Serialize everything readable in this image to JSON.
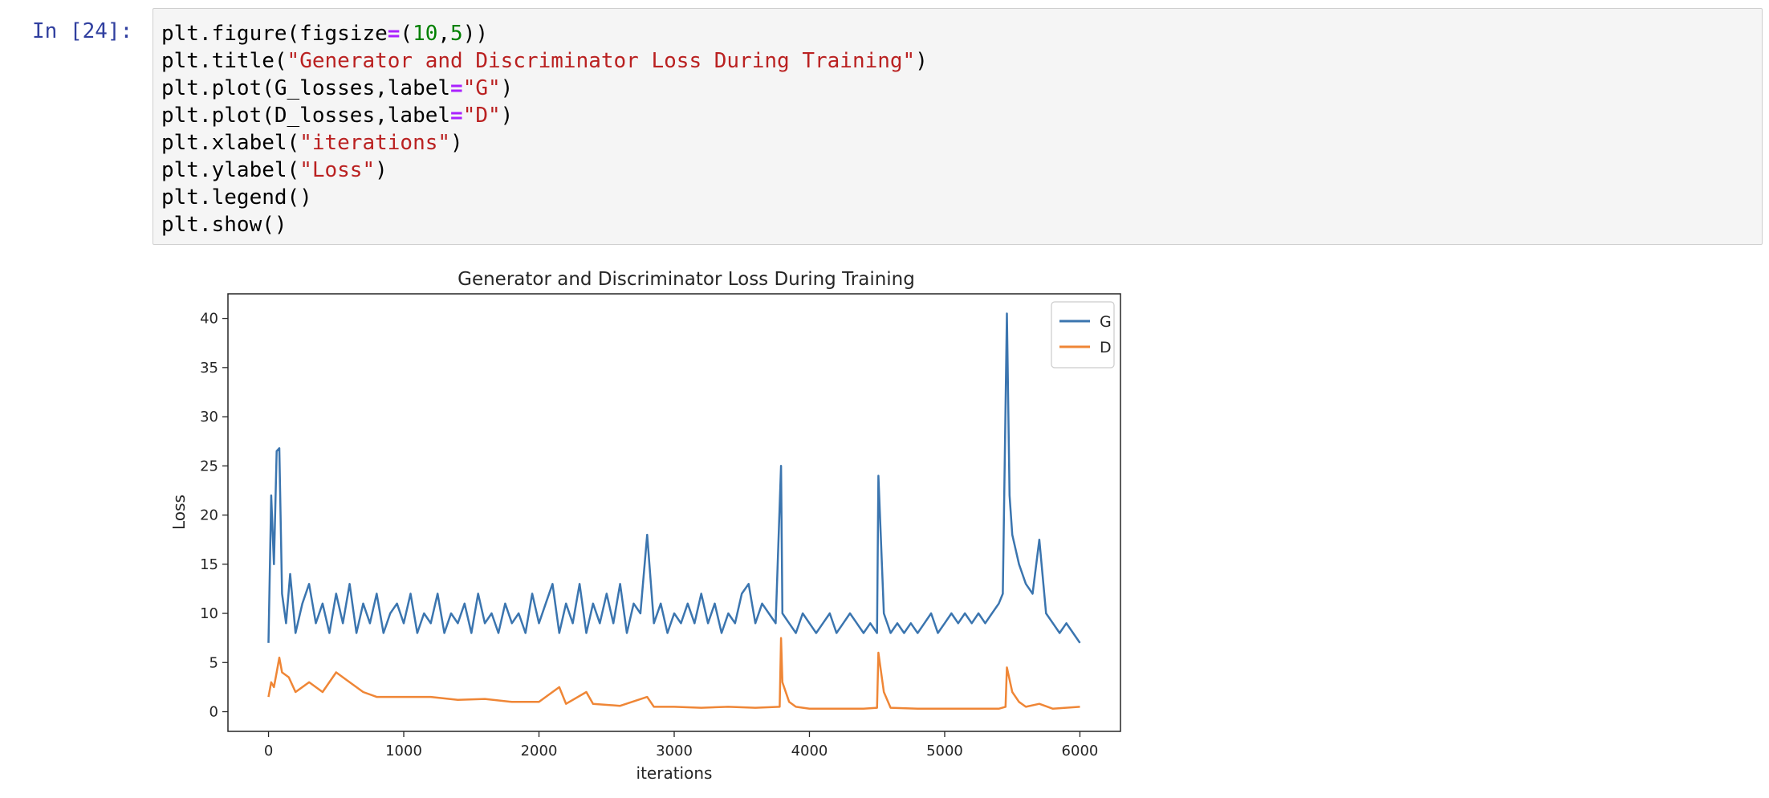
{
  "cell": {
    "prompt": "In [24]:",
    "code_lines": [
      [
        {
          "t": "plt.figure(figsize"
        },
        {
          "t": "=",
          "c": "op"
        },
        {
          "t": "("
        },
        {
          "t": "10",
          "c": "num"
        },
        {
          "t": ","
        },
        {
          "t": "5",
          "c": "num"
        },
        {
          "t": "))"
        }
      ],
      [
        {
          "t": "plt.title("
        },
        {
          "t": "\"Generator and Discriminator Loss During Training\"",
          "c": "str"
        },
        {
          "t": ")"
        }
      ],
      [
        {
          "t": "plt.plot(G_losses,label"
        },
        {
          "t": "=",
          "c": "op"
        },
        {
          "t": "\"G\"",
          "c": "str"
        },
        {
          "t": ")"
        }
      ],
      [
        {
          "t": "plt.plot(D_losses,label"
        },
        {
          "t": "=",
          "c": "op"
        },
        {
          "t": "\"D\"",
          "c": "str"
        },
        {
          "t": ")"
        }
      ],
      [
        {
          "t": "plt.xlabel("
        },
        {
          "t": "\"iterations\"",
          "c": "str"
        },
        {
          "t": ")"
        }
      ],
      [
        {
          "t": "plt.ylabel("
        },
        {
          "t": "\"Loss\"",
          "c": "str"
        },
        {
          "t": ")"
        }
      ],
      [
        {
          "t": "plt.legend()"
        }
      ],
      [
        {
          "t": "plt.show()"
        }
      ]
    ]
  },
  "colors": {
    "G": "#3b75af",
    "D": "#ef8636"
  },
  "chart_data": {
    "type": "line",
    "title": "Generator and Discriminator Loss During Training",
    "xlabel": "iterations",
    "ylabel": "Loss",
    "xlim": [
      -300,
      6300
    ],
    "ylim": [
      -2,
      42.5
    ],
    "xticks": [
      0,
      1000,
      2000,
      3000,
      4000,
      5000,
      6000
    ],
    "yticks": [
      0,
      5,
      10,
      15,
      20,
      25,
      30,
      35,
      40
    ],
    "legend": "top-right",
    "grid": false,
    "series": [
      {
        "name": "G",
        "x": [
          0,
          20,
          40,
          60,
          80,
          100,
          130,
          160,
          200,
          250,
          300,
          350,
          400,
          450,
          500,
          550,
          600,
          650,
          700,
          750,
          800,
          850,
          900,
          950,
          1000,
          1050,
          1100,
          1150,
          1200,
          1250,
          1300,
          1350,
          1400,
          1450,
          1500,
          1550,
          1600,
          1650,
          1700,
          1750,
          1800,
          1850,
          1900,
          1950,
          2000,
          2050,
          2100,
          2150,
          2200,
          2250,
          2300,
          2350,
          2400,
          2450,
          2500,
          2550,
          2600,
          2650,
          2700,
          2750,
          2800,
          2850,
          2900,
          2950,
          3000,
          3050,
          3100,
          3150,
          3200,
          3250,
          3300,
          3350,
          3400,
          3450,
          3500,
          3550,
          3600,
          3650,
          3700,
          3750,
          3790,
          3800,
          3850,
          3900,
          3950,
          4000,
          4050,
          4100,
          4150,
          4200,
          4250,
          4300,
          4350,
          4400,
          4450,
          4500,
          4510,
          4550,
          4600,
          4650,
          4700,
          4750,
          4800,
          4850,
          4900,
          4950,
          5000,
          5050,
          5100,
          5150,
          5200,
          5250,
          5300,
          5350,
          5400,
          5430,
          5460,
          5480,
          5500,
          5550,
          5600,
          5650,
          5700,
          5750,
          5800,
          5850,
          5900,
          5950,
          6000
        ],
        "values": [
          7,
          22,
          15,
          26.5,
          26.8,
          12,
          9,
          14,
          8,
          11,
          13,
          9,
          11,
          8,
          12,
          9,
          13,
          8,
          11,
          9,
          12,
          8,
          10,
          11,
          9,
          12,
          8,
          10,
          9,
          12,
          8,
          10,
          9,
          11,
          8,
          12,
          9,
          10,
          8,
          11,
          9,
          10,
          8,
          12,
          9,
          11,
          13,
          8,
          11,
          9,
          13,
          8,
          11,
          9,
          12,
          9,
          13,
          8,
          11,
          10,
          18,
          9,
          11,
          8,
          10,
          9,
          11,
          9,
          12,
          9,
          11,
          8,
          10,
          9,
          12,
          13,
          9,
          11,
          10,
          9,
          25,
          10,
          9,
          8,
          10,
          9,
          8,
          9,
          10,
          8,
          9,
          10,
          9,
          8,
          9,
          8,
          24,
          10,
          8,
          9,
          8,
          9,
          8,
          9,
          10,
          8,
          9,
          10,
          9,
          10,
          9,
          10,
          9,
          10,
          11,
          12,
          40.5,
          22,
          18,
          15,
          13,
          12,
          17.5,
          10,
          9,
          8,
          9,
          8,
          7
        ]
      },
      {
        "name": "D",
        "x": [
          0,
          20,
          40,
          60,
          80,
          100,
          150,
          200,
          300,
          400,
          500,
          600,
          700,
          800,
          1000,
          1200,
          1400,
          1600,
          1800,
          2000,
          2150,
          2200,
          2350,
          2400,
          2600,
          2800,
          2850,
          3000,
          3200,
          3400,
          3600,
          3780,
          3790,
          3800,
          3850,
          3900,
          4000,
          4200,
          4400,
          4500,
          4510,
          4550,
          4600,
          4800,
          5000,
          5200,
          5400,
          5450,
          5460,
          5500,
          5550,
          5600,
          5700,
          5800,
          6000
        ],
        "values": [
          1.5,
          3,
          2.5,
          4,
          5.5,
          4,
          3.5,
          2,
          3,
          2,
          4,
          3,
          2,
          1.5,
          1.5,
          1.5,
          1.2,
          1.3,
          1,
          1,
          2.5,
          0.8,
          2,
          0.8,
          0.6,
          1.5,
          0.5,
          0.5,
          0.4,
          0.5,
          0.4,
          0.5,
          7.5,
          3,
          1,
          0.5,
          0.3,
          0.3,
          0.3,
          0.4,
          6,
          2,
          0.4,
          0.3,
          0.3,
          0.3,
          0.3,
          0.5,
          4.5,
          2,
          1,
          0.5,
          0.8,
          0.3,
          0.5
        ]
      }
    ]
  }
}
